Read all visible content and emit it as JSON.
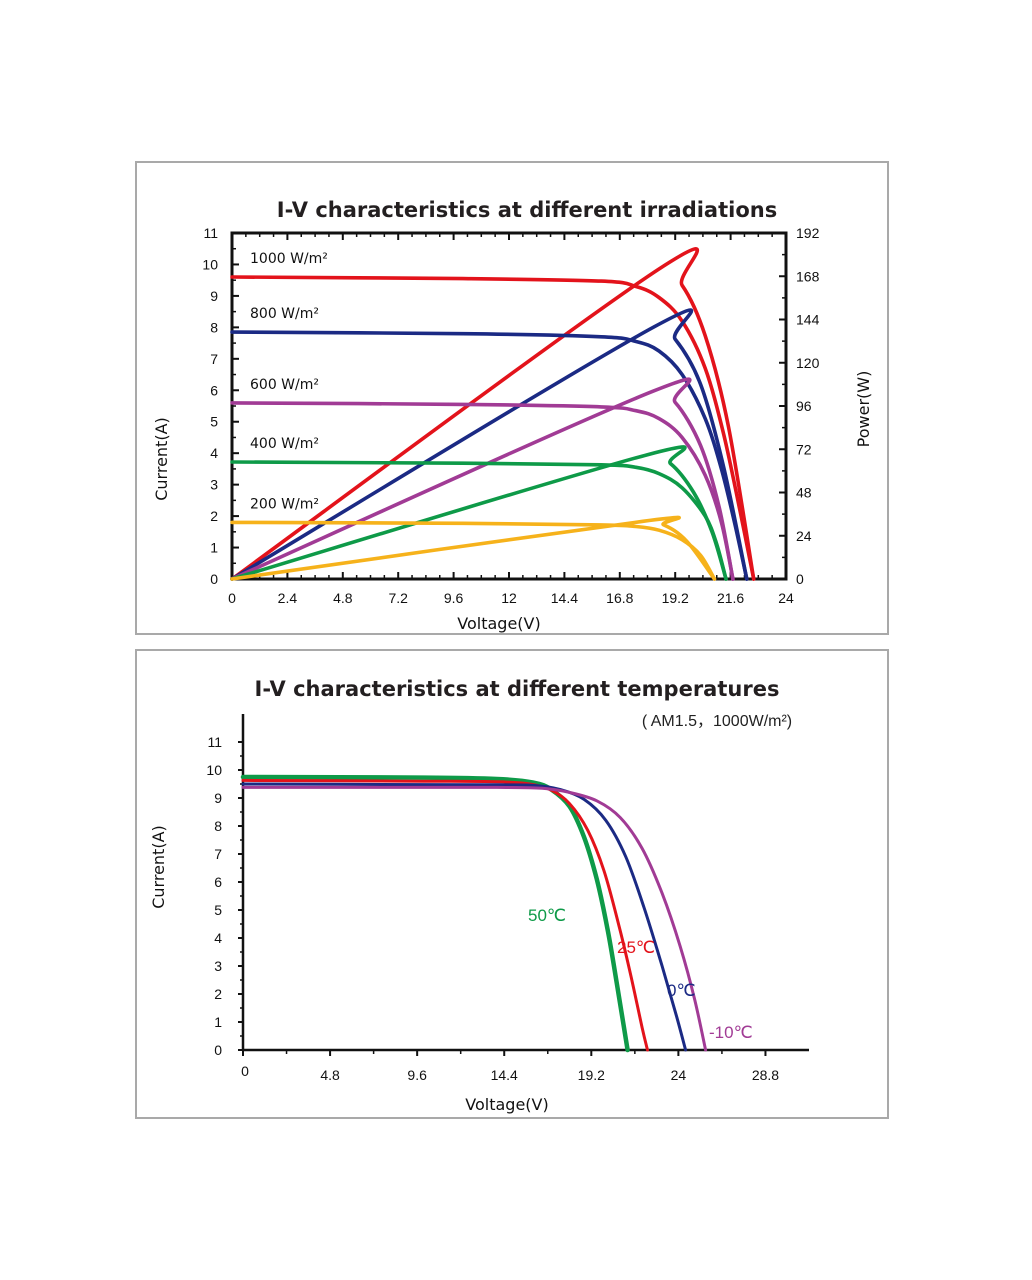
{
  "chart_data": [
    {
      "type": "line",
      "title": "I-V characteristics at different irradiations",
      "xlabel": "Voltage(V)",
      "ylabel": "Current(A)",
      "y2label": "Power(W)",
      "xlim": [
        0,
        24
      ],
      "ylim": [
        0,
        11
      ],
      "y2lim": [
        0,
        192
      ],
      "xticks": [
        "0",
        "2.4",
        "4.8",
        "7.2",
        "9.6",
        "12",
        "14.4",
        "16.8",
        "19.2",
        "21.6",
        "24"
      ],
      "yticks": [
        "0",
        "1",
        "2",
        "3",
        "4",
        "5",
        "6",
        "7",
        "8",
        "9",
        "10",
        "11"
      ],
      "y2ticks": [
        "0",
        "24",
        "48",
        "72",
        "96",
        "120",
        "144",
        "168",
        "192"
      ],
      "grid": false,
      "series": [
        {
          "name": "1000 W/m²",
          "color": "#e3131b",
          "iv": [
            [
              0,
              9.6
            ],
            [
              10,
              9.55
            ],
            [
              16,
              9.47
            ],
            [
              17.5,
              9.3
            ],
            [
              18.5,
              8.95
            ],
            [
              19.5,
              8.2
            ],
            [
              20.5,
              6.7
            ],
            [
              21.3,
              4.6
            ],
            [
              22.0,
              2.2
            ],
            [
              22.6,
              0
            ]
          ],
          "power": [
            [
              0,
              0
            ],
            [
              18.5,
              172
            ],
            [
              19.5,
              163
            ],
            [
              20.5,
              135
            ],
            [
              21.5,
              85
            ],
            [
              22.6,
              0
            ]
          ]
        },
        {
          "name": "800 W/m²",
          "color": "#1b2a84",
          "iv": [
            [
              0,
              7.85
            ],
            [
              10,
              7.8
            ],
            [
              16,
              7.7
            ],
            [
              17.5,
              7.55
            ],
            [
              18.5,
              7.25
            ],
            [
              19.5,
              6.5
            ],
            [
              20.5,
              5.1
            ],
            [
              21.2,
              3.5
            ],
            [
              21.8,
              1.7
            ],
            [
              22.3,
              0
            ]
          ],
          "power": [
            [
              0,
              0
            ],
            [
              18.3,
              140
            ],
            [
              19.2,
              133
            ],
            [
              20.3,
              108
            ],
            [
              21.3,
              62
            ],
            [
              22.3,
              0
            ]
          ]
        },
        {
          "name": "600 W/m²",
          "color": "#a13b95",
          "iv": [
            [
              0,
              5.6
            ],
            [
              10,
              5.55
            ],
            [
              16,
              5.47
            ],
            [
              17.5,
              5.35
            ],
            [
              18.5,
              5.1
            ],
            [
              19.5,
              4.5
            ],
            [
              20.5,
              3.3
            ],
            [
              21.2,
              1.8
            ],
            [
              21.7,
              0
            ]
          ],
          "power": [
            [
              0,
              0
            ],
            [
              18.2,
              104
            ],
            [
              19.2,
              98
            ],
            [
              20.3,
              74
            ],
            [
              21.1,
              40
            ],
            [
              21.7,
              0
            ]
          ]
        },
        {
          "name": "400 W/m²",
          "color": "#0e9a48",
          "iv": [
            [
              0,
              3.72
            ],
            [
              10,
              3.68
            ],
            [
              16,
              3.63
            ],
            [
              17.5,
              3.55
            ],
            [
              18.5,
              3.35
            ],
            [
              19.5,
              2.9
            ],
            [
              20.5,
              2.0
            ],
            [
              21.0,
              1.1
            ],
            [
              21.4,
              0
            ]
          ],
          "power": [
            [
              0,
              0
            ],
            [
              18.0,
              69
            ],
            [
              19.0,
              64
            ],
            [
              20.0,
              48
            ],
            [
              20.8,
              26
            ],
            [
              21.4,
              0
            ]
          ]
        },
        {
          "name": "200 W/m²",
          "color": "#f6b21b",
          "iv": [
            [
              0,
              1.8
            ],
            [
              10,
              1.77
            ],
            [
              16,
              1.72
            ],
            [
              17.5,
              1.67
            ],
            [
              18.5,
              1.55
            ],
            [
              19.5,
              1.25
            ],
            [
              20.3,
              0.75
            ],
            [
              20.9,
              0
            ]
          ],
          "power": [
            [
              0,
              0
            ],
            [
              17.8,
              32
            ],
            [
              18.7,
              30
            ],
            [
              19.7,
              21
            ],
            [
              20.9,
              0
            ]
          ]
        }
      ]
    },
    {
      "type": "line",
      "title": "I-V characteristics at different temperatures",
      "subtitle": "( AM1.5，1000W/m²)",
      "xlabel": "Voltage(V)",
      "ylabel": "Current(A)",
      "xlim": [
        0,
        31.2
      ],
      "ylim": [
        0,
        11
      ],
      "xticks": [
        "0",
        "4.8",
        "9.6",
        "14.4",
        "19.2",
        "24",
        "28.8"
      ],
      "yticks": [
        "0",
        "1",
        "2",
        "3",
        "4",
        "5",
        "6",
        "7",
        "8",
        "9",
        "10",
        "11"
      ],
      "grid": false,
      "series": [
        {
          "name": "50℃",
          "color": "#0e9a48",
          "iv": [
            [
              0,
              9.75
            ],
            [
              10,
              9.73
            ],
            [
              14,
              9.68
            ],
            [
              16,
              9.55
            ],
            [
              17,
              9.3
            ],
            [
              18,
              8.7
            ],
            [
              18.8,
              7.6
            ],
            [
              19.5,
              6.1
            ],
            [
              20.1,
              4.3
            ],
            [
              20.6,
              2.4
            ],
            [
              21.0,
              0.8
            ],
            [
              21.2,
              0
            ]
          ]
        },
        {
          "name": "25℃",
          "color": "#e3131b",
          "iv": [
            [
              0,
              9.63
            ],
            [
              10,
              9.6
            ],
            [
              14,
              9.58
            ],
            [
              15.8,
              9.5
            ],
            [
              17,
              9.28
            ],
            [
              18,
              8.8
            ],
            [
              19,
              7.85
            ],
            [
              19.9,
              6.4
            ],
            [
              20.7,
              4.5
            ],
            [
              21.4,
              2.6
            ],
            [
              22.0,
              0.8
            ],
            [
              22.3,
              0
            ]
          ]
        },
        {
          "name": "0℃",
          "color": "#1b2a84",
          "iv": [
            [
              0,
              9.5
            ],
            [
              10,
              9.48
            ],
            [
              14,
              9.47
            ],
            [
              16,
              9.45
            ],
            [
              17.5,
              9.3
            ],
            [
              18.8,
              8.95
            ],
            [
              20,
              8.2
            ],
            [
              21.1,
              6.9
            ],
            [
              22.1,
              5.1
            ],
            [
              23.1,
              3.0
            ],
            [
              23.9,
              1.2
            ],
            [
              24.4,
              0
            ]
          ]
        },
        {
          "name": "-10℃",
          "color": "#a13b95",
          "iv": [
            [
              0,
              9.38
            ],
            [
              10,
              9.38
            ],
            [
              14,
              9.38
            ],
            [
              16.5,
              9.35
            ],
            [
              18,
              9.2
            ],
            [
              19.5,
              8.9
            ],
            [
              20.8,
              8.3
            ],
            [
              22,
              7.2
            ],
            [
              23.1,
              5.6
            ],
            [
              24.1,
              3.7
            ],
            [
              24.9,
              1.8
            ],
            [
              25.5,
              0
            ]
          ]
        }
      ]
    }
  ]
}
